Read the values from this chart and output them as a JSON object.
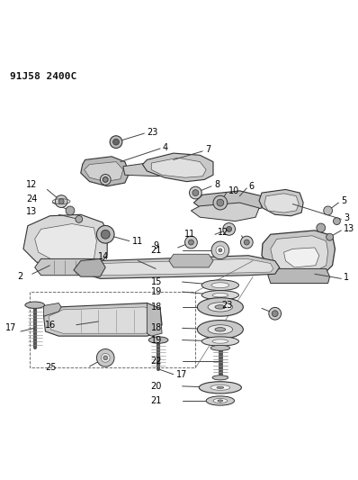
{
  "title": "91J58 2400C",
  "bg_color": "#ffffff",
  "lc": "#444444",
  "figsize": [
    3.98,
    5.33
  ],
  "dpi": 100,
  "title_fs": 8,
  "label_fs": 7
}
